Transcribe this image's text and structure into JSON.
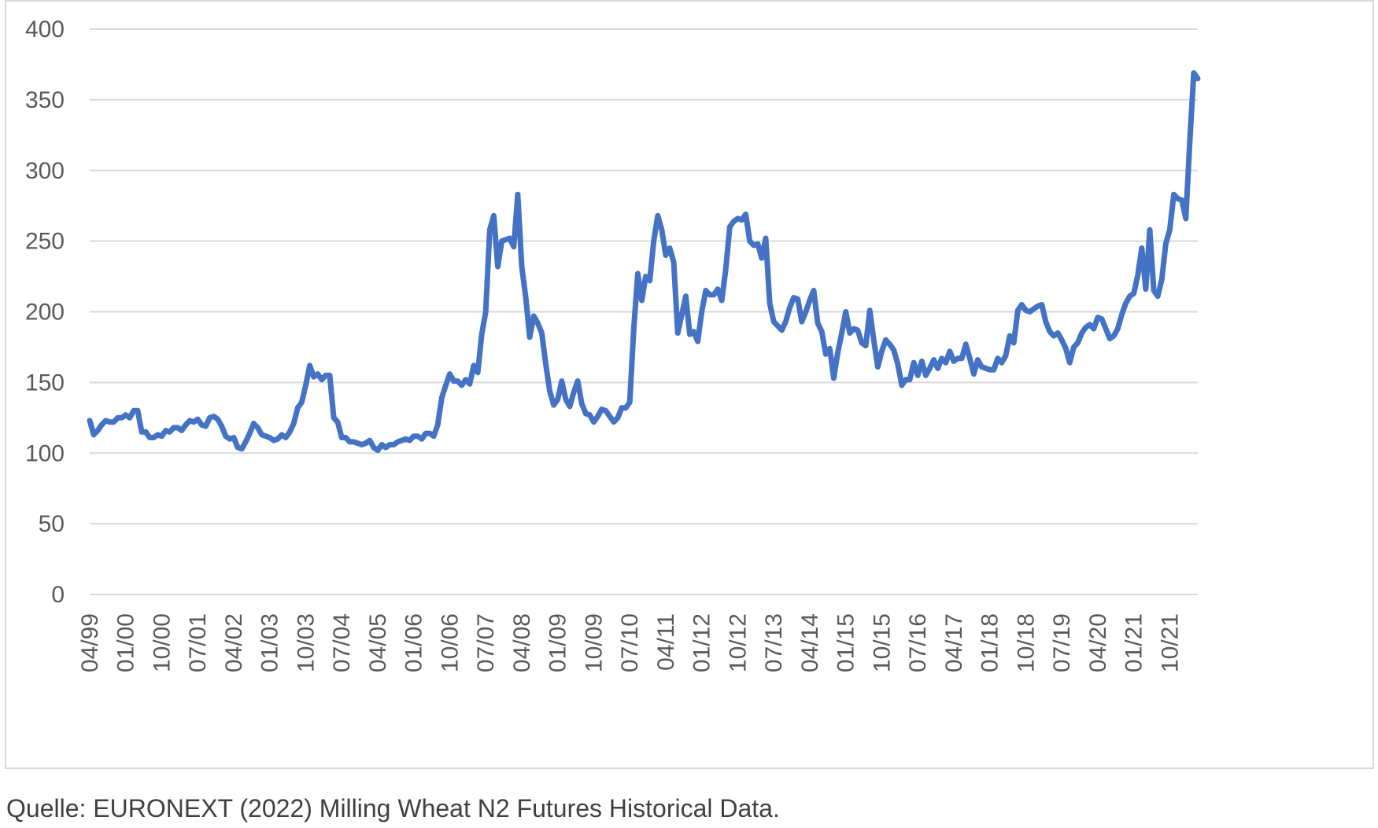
{
  "source": "Quelle: EURONEXT (2022) Milling Wheat N2 Futures Historical Data.",
  "colors": {
    "line": "#4472C4",
    "grid": "#d9d9d9",
    "text": "#595959"
  },
  "chart_data": {
    "type": "line",
    "title": "",
    "xlabel": "",
    "ylabel": "",
    "ylim": [
      0,
      400
    ],
    "yticks": [
      0,
      50,
      100,
      150,
      200,
      250,
      300,
      350,
      400
    ],
    "grid": true,
    "legend": "none",
    "x_start": "04/99",
    "x_end": "04/22",
    "x_tick_labels": [
      "04/99",
      "01/00",
      "10/00",
      "07/01",
      "04/02",
      "01/03",
      "10/03",
      "07/04",
      "04/05",
      "01/06",
      "10/06",
      "07/07",
      "04/08",
      "01/09",
      "10/09",
      "07/10",
      "04/11",
      "01/12",
      "10/12",
      "07/13",
      "04/14",
      "01/15",
      "10/15",
      "07/16",
      "04/17",
      "01/18",
      "10/18",
      "07/19",
      "04/20",
      "01/21",
      "10/21"
    ],
    "series": [
      {
        "values": [
          123,
          113,
          116,
          120,
          123,
          122,
          122,
          125,
          125,
          127,
          125,
          130,
          130,
          115,
          115,
          111,
          111,
          113,
          112,
          116,
          115,
          118,
          118,
          116,
          120,
          123,
          122,
          124,
          120,
          119,
          125,
          126,
          124,
          119,
          112,
          110,
          111,
          104,
          103,
          108,
          114,
          121,
          118,
          113,
          112,
          111,
          109,
          110,
          113,
          111,
          115,
          121,
          132,
          136,
          148,
          162,
          154,
          156,
          152,
          155,
          155,
          125,
          122,
          111,
          111,
          108,
          108,
          107,
          106,
          107,
          109,
          104,
          102,
          106,
          104,
          106,
          106,
          108,
          109,
          110,
          109,
          112,
          112,
          110,
          114,
          114,
          112,
          120,
          139,
          148,
          156,
          151,
          151,
          148,
          152,
          149,
          162,
          157,
          184,
          200,
          258,
          268,
          232,
          250,
          251,
          252,
          246,
          283,
          232,
          210,
          182,
          197,
          192,
          185,
          163,
          144,
          134,
          138,
          151,
          138,
          133,
          143,
          151,
          135,
          128,
          127,
          122,
          126,
          131,
          130,
          126,
          122,
          125,
          132,
          132,
          136,
          188,
          227,
          208,
          225,
          222,
          250,
          268,
          258,
          240,
          245,
          235,
          185,
          198,
          211,
          184,
          186,
          179,
          200,
          215,
          212,
          212,
          216,
          208,
          230,
          260,
          264,
          266,
          265,
          269,
          250,
          247,
          248,
          238,
          252,
          206,
          193,
          190,
          187,
          193,
          203,
          210,
          209,
          193,
          200,
          208,
          215,
          192,
          186,
          170,
          174,
          153,
          171,
          185,
          200,
          185,
          188,
          187,
          178,
          176,
          201,
          180,
          161,
          172,
          180,
          177,
          173,
          163,
          148,
          152,
          152,
          164,
          155,
          165,
          155,
          160,
          166,
          160,
          167,
          164,
          172,
          165,
          167,
          167,
          177,
          167,
          156,
          166,
          161,
          160,
          159,
          159,
          167,
          164,
          169,
          183,
          178,
          201,
          205,
          201,
          200,
          202,
          204,
          205,
          193,
          186,
          183,
          185,
          180,
          174,
          164,
          175,
          178,
          185,
          189,
          191,
          188,
          196,
          195,
          188,
          181,
          183,
          188,
          198,
          206,
          211,
          213,
          226,
          245,
          216,
          258,
          215,
          211,
          223,
          248,
          258,
          283,
          280,
          279,
          266,
          320,
          369,
          365
        ]
      }
    ]
  }
}
